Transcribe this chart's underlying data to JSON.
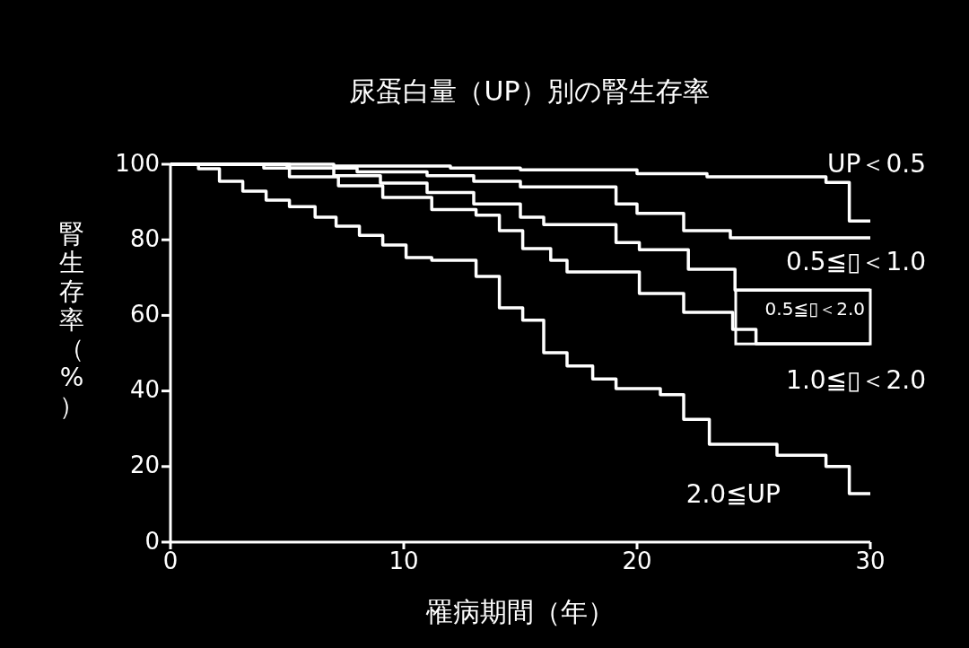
{
  "chart_data": {
    "type": "step",
    "title": "尿蛋白量（UP）別の腎生存率",
    "xlabel": "罹病期間（年）",
    "ylabel": "腎生存率（%）",
    "xlim": [
      0,
      30
    ],
    "xticks": [
      0,
      10,
      20,
      30
    ],
    "ylim": [
      0,
      100
    ],
    "yticks": [
      0,
      20,
      40,
      60,
      80,
      100
    ],
    "grid": false,
    "series": [
      {
        "name": "UP＜0.5",
        "color": "#ffffff",
        "x": [
          0,
          7,
          12,
          15,
          20,
          23,
          28.1,
          29.1,
          30
        ],
        "values": [
          100,
          99.5,
          99,
          98.5,
          97.5,
          96.7,
          95.2,
          85,
          85
        ]
      },
      {
        "name": "0.5≦▯＜1.0",
        "color": "#ffffff",
        "x": [
          0,
          5,
          8,
          11,
          13,
          15,
          19.1,
          20,
          22,
          24,
          30
        ],
        "values": [
          100,
          99,
          98,
          97,
          95.5,
          94,
          89.5,
          87,
          82.4,
          80.5,
          80.5
        ]
      },
      {
        "name": "0.5≦▯＜2.0",
        "color": "#ffffff",
        "x": [
          0,
          4,
          7,
          9,
          11,
          13,
          15,
          16,
          19.1,
          20.1,
          22.2,
          24.2,
          30
        ],
        "values": [
          100,
          99,
          97,
          95,
          92.5,
          89.5,
          86,
          84,
          79.3,
          77.4,
          72.2,
          66.7,
          66.7
        ]
      },
      {
        "name": "1.0≦▯＜2.0",
        "color": "#ffffff",
        "x": [
          0,
          5.1,
          7.2,
          9.1,
          11.2,
          13.1,
          14.1,
          15.1,
          16.3,
          17,
          20.1,
          22,
          24.1,
          25.1,
          30
        ],
        "values": [
          100,
          96.7,
          94.3,
          91.2,
          88,
          86.5,
          82.4,
          77.7,
          74.6,
          71.5,
          65.8,
          60.8,
          56.3,
          52.5,
          52.5
        ]
      },
      {
        "name": "2.0≦UP",
        "color": "#ffffff",
        "x": [
          1,
          1.2,
          2.1,
          3.1,
          4.1,
          5.1,
          6.2,
          7.1,
          8.1,
          9.1,
          10.1,
          11.2,
          13.1,
          14.1,
          15.1,
          16,
          17,
          18.1,
          19.1,
          21,
          22,
          23.1,
          26,
          28.1,
          29.1,
          30
        ],
        "values": [
          100,
          98.8,
          95.5,
          92.9,
          90.5,
          88.8,
          86,
          83.6,
          81.2,
          78.6,
          75.3,
          74.6,
          70.3,
          62,
          58.7,
          50.1,
          46.6,
          43.2,
          40.6,
          39,
          32.5,
          25.9,
          23,
          20,
          12.8,
          12.8
        ]
      }
    ]
  }
}
